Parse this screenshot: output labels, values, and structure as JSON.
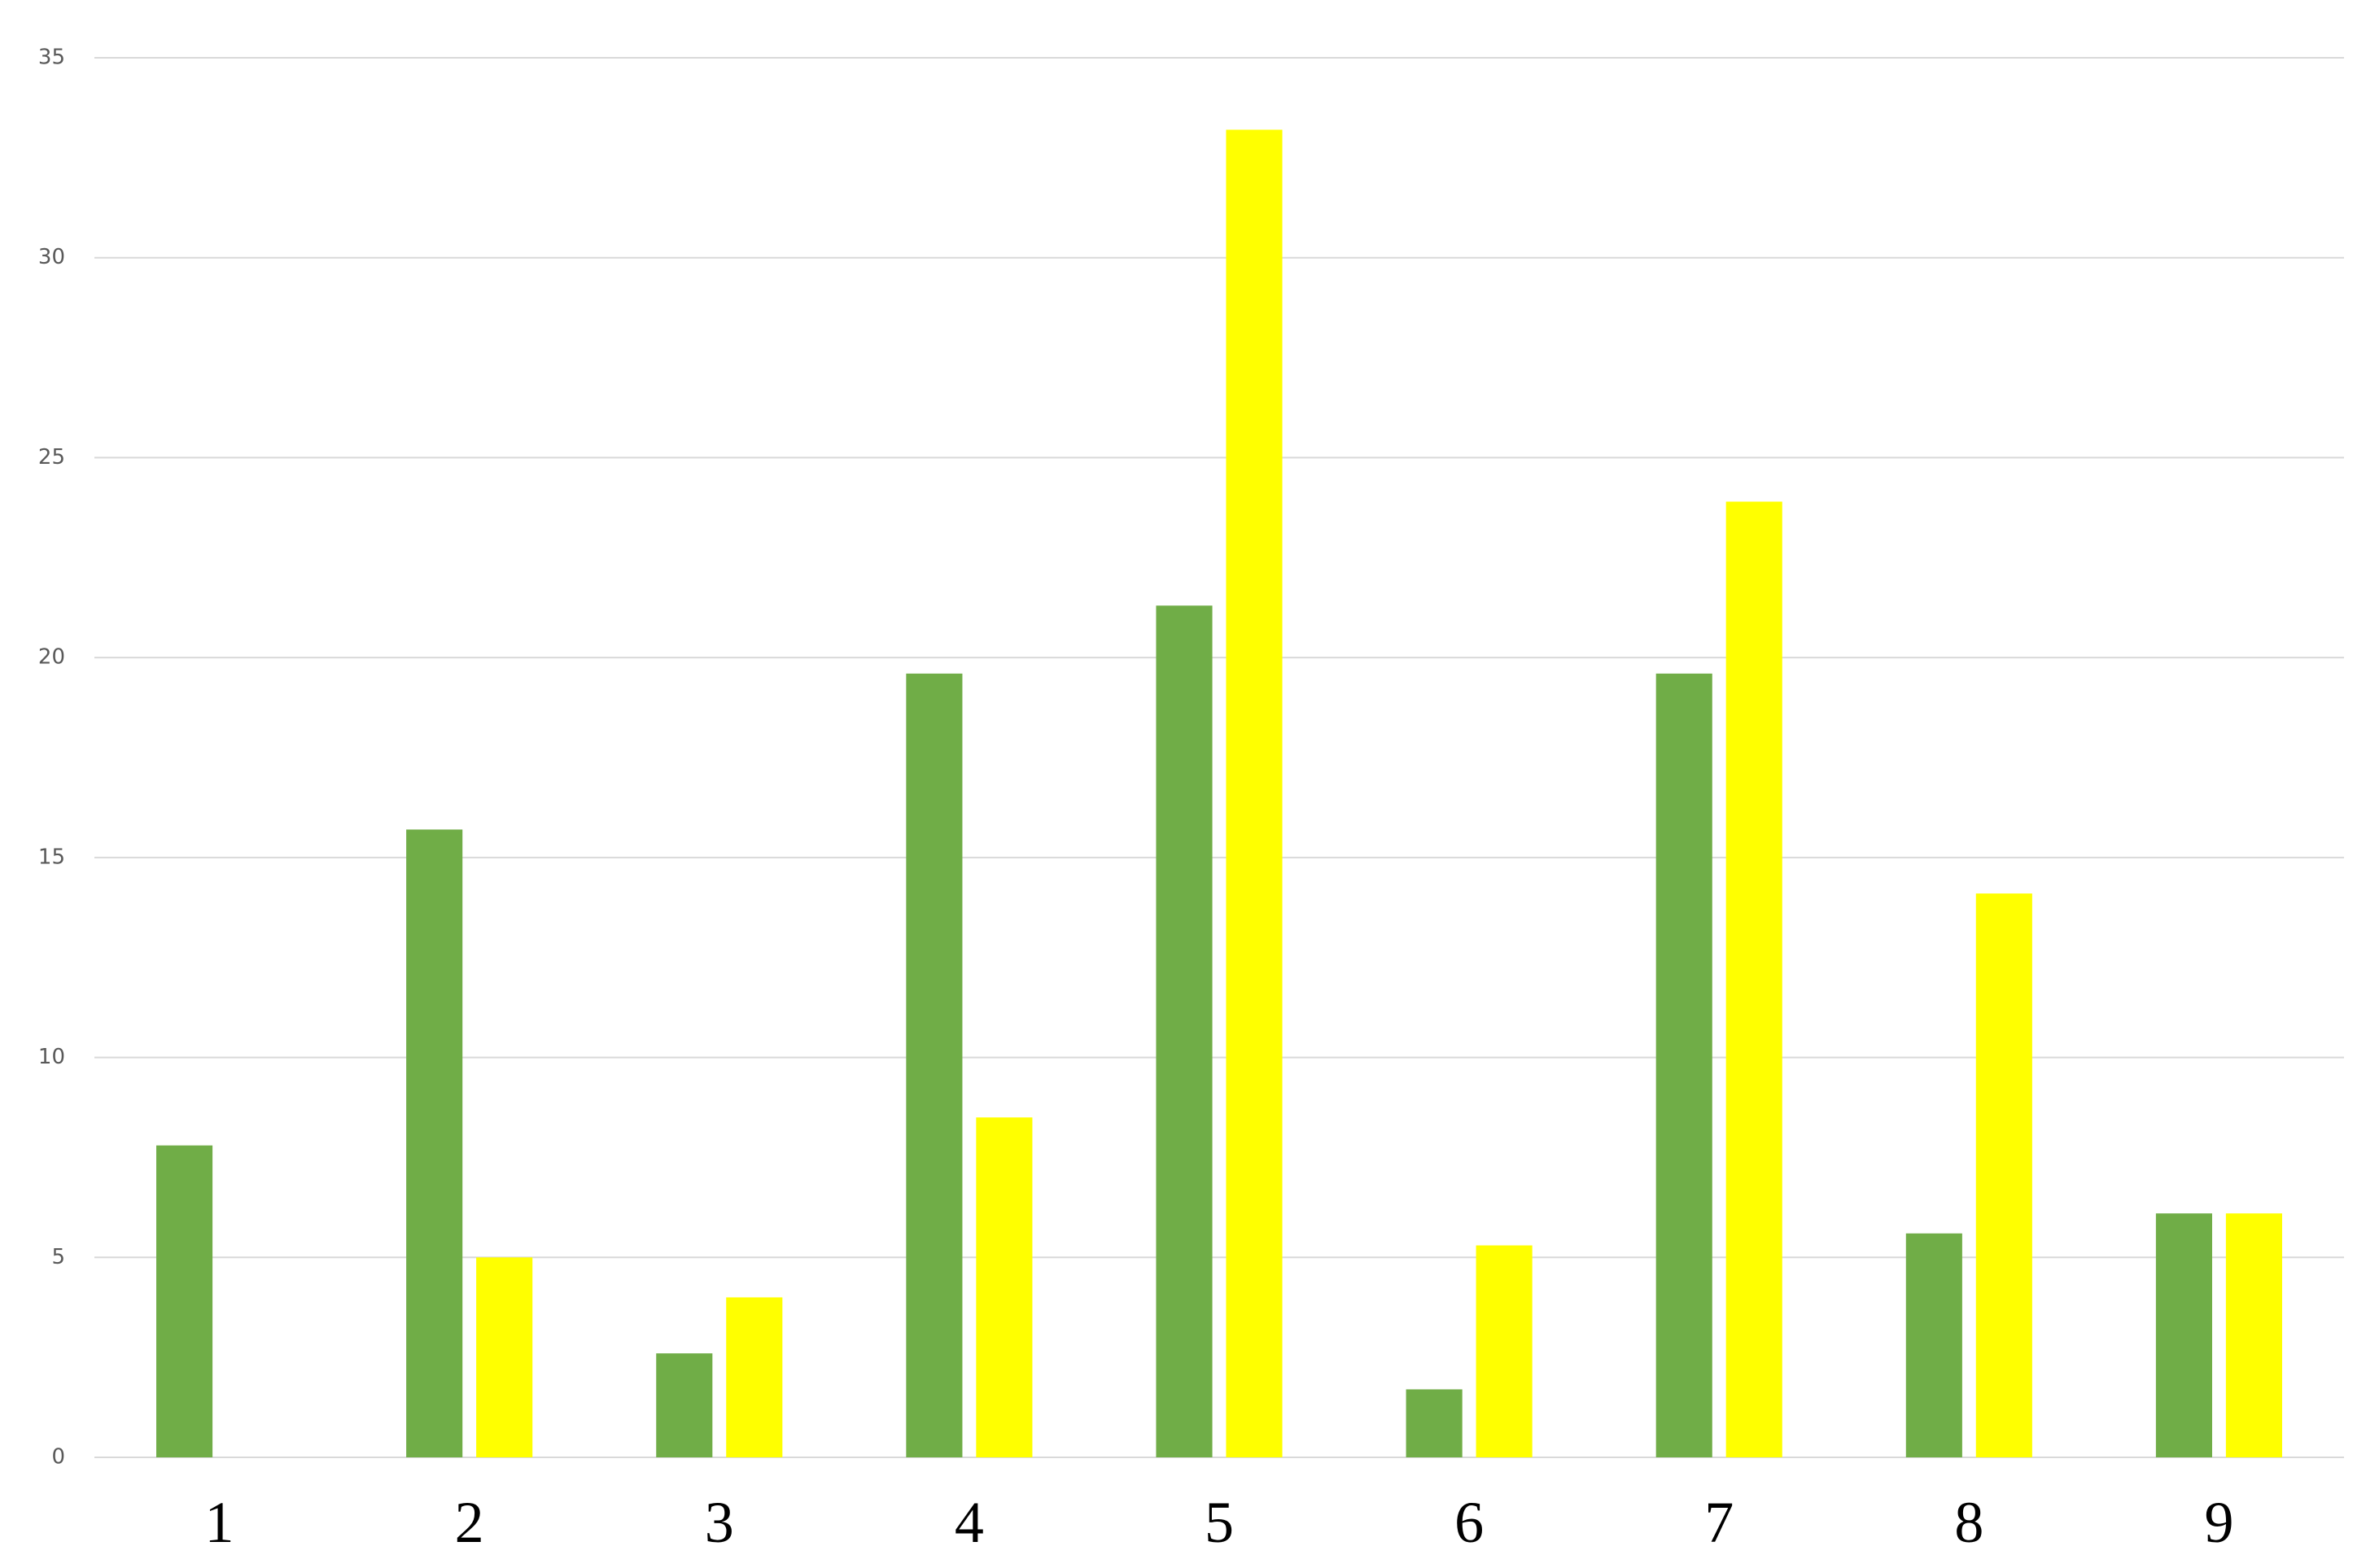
{
  "chart_data": {
    "type": "bar",
    "categories": [
      "1",
      "2",
      "3",
      "4",
      "5",
      "6",
      "7",
      "8",
      "9"
    ],
    "series": [
      {
        "color": "#70ad47",
        "values": [
          7.8,
          15.7,
          2.6,
          19.6,
          21.3,
          1.7,
          19.6,
          5.6,
          6.1
        ]
      },
      {
        "color": "#ffff00",
        "values": [
          null,
          5.0,
          4.0,
          8.5,
          33.2,
          5.3,
          23.9,
          14.1,
          6.1
        ]
      }
    ],
    "ylim": [
      0,
      35
    ],
    "yticks": [
      0,
      5,
      10,
      15,
      20,
      25,
      30,
      35
    ],
    "grid": true
  }
}
